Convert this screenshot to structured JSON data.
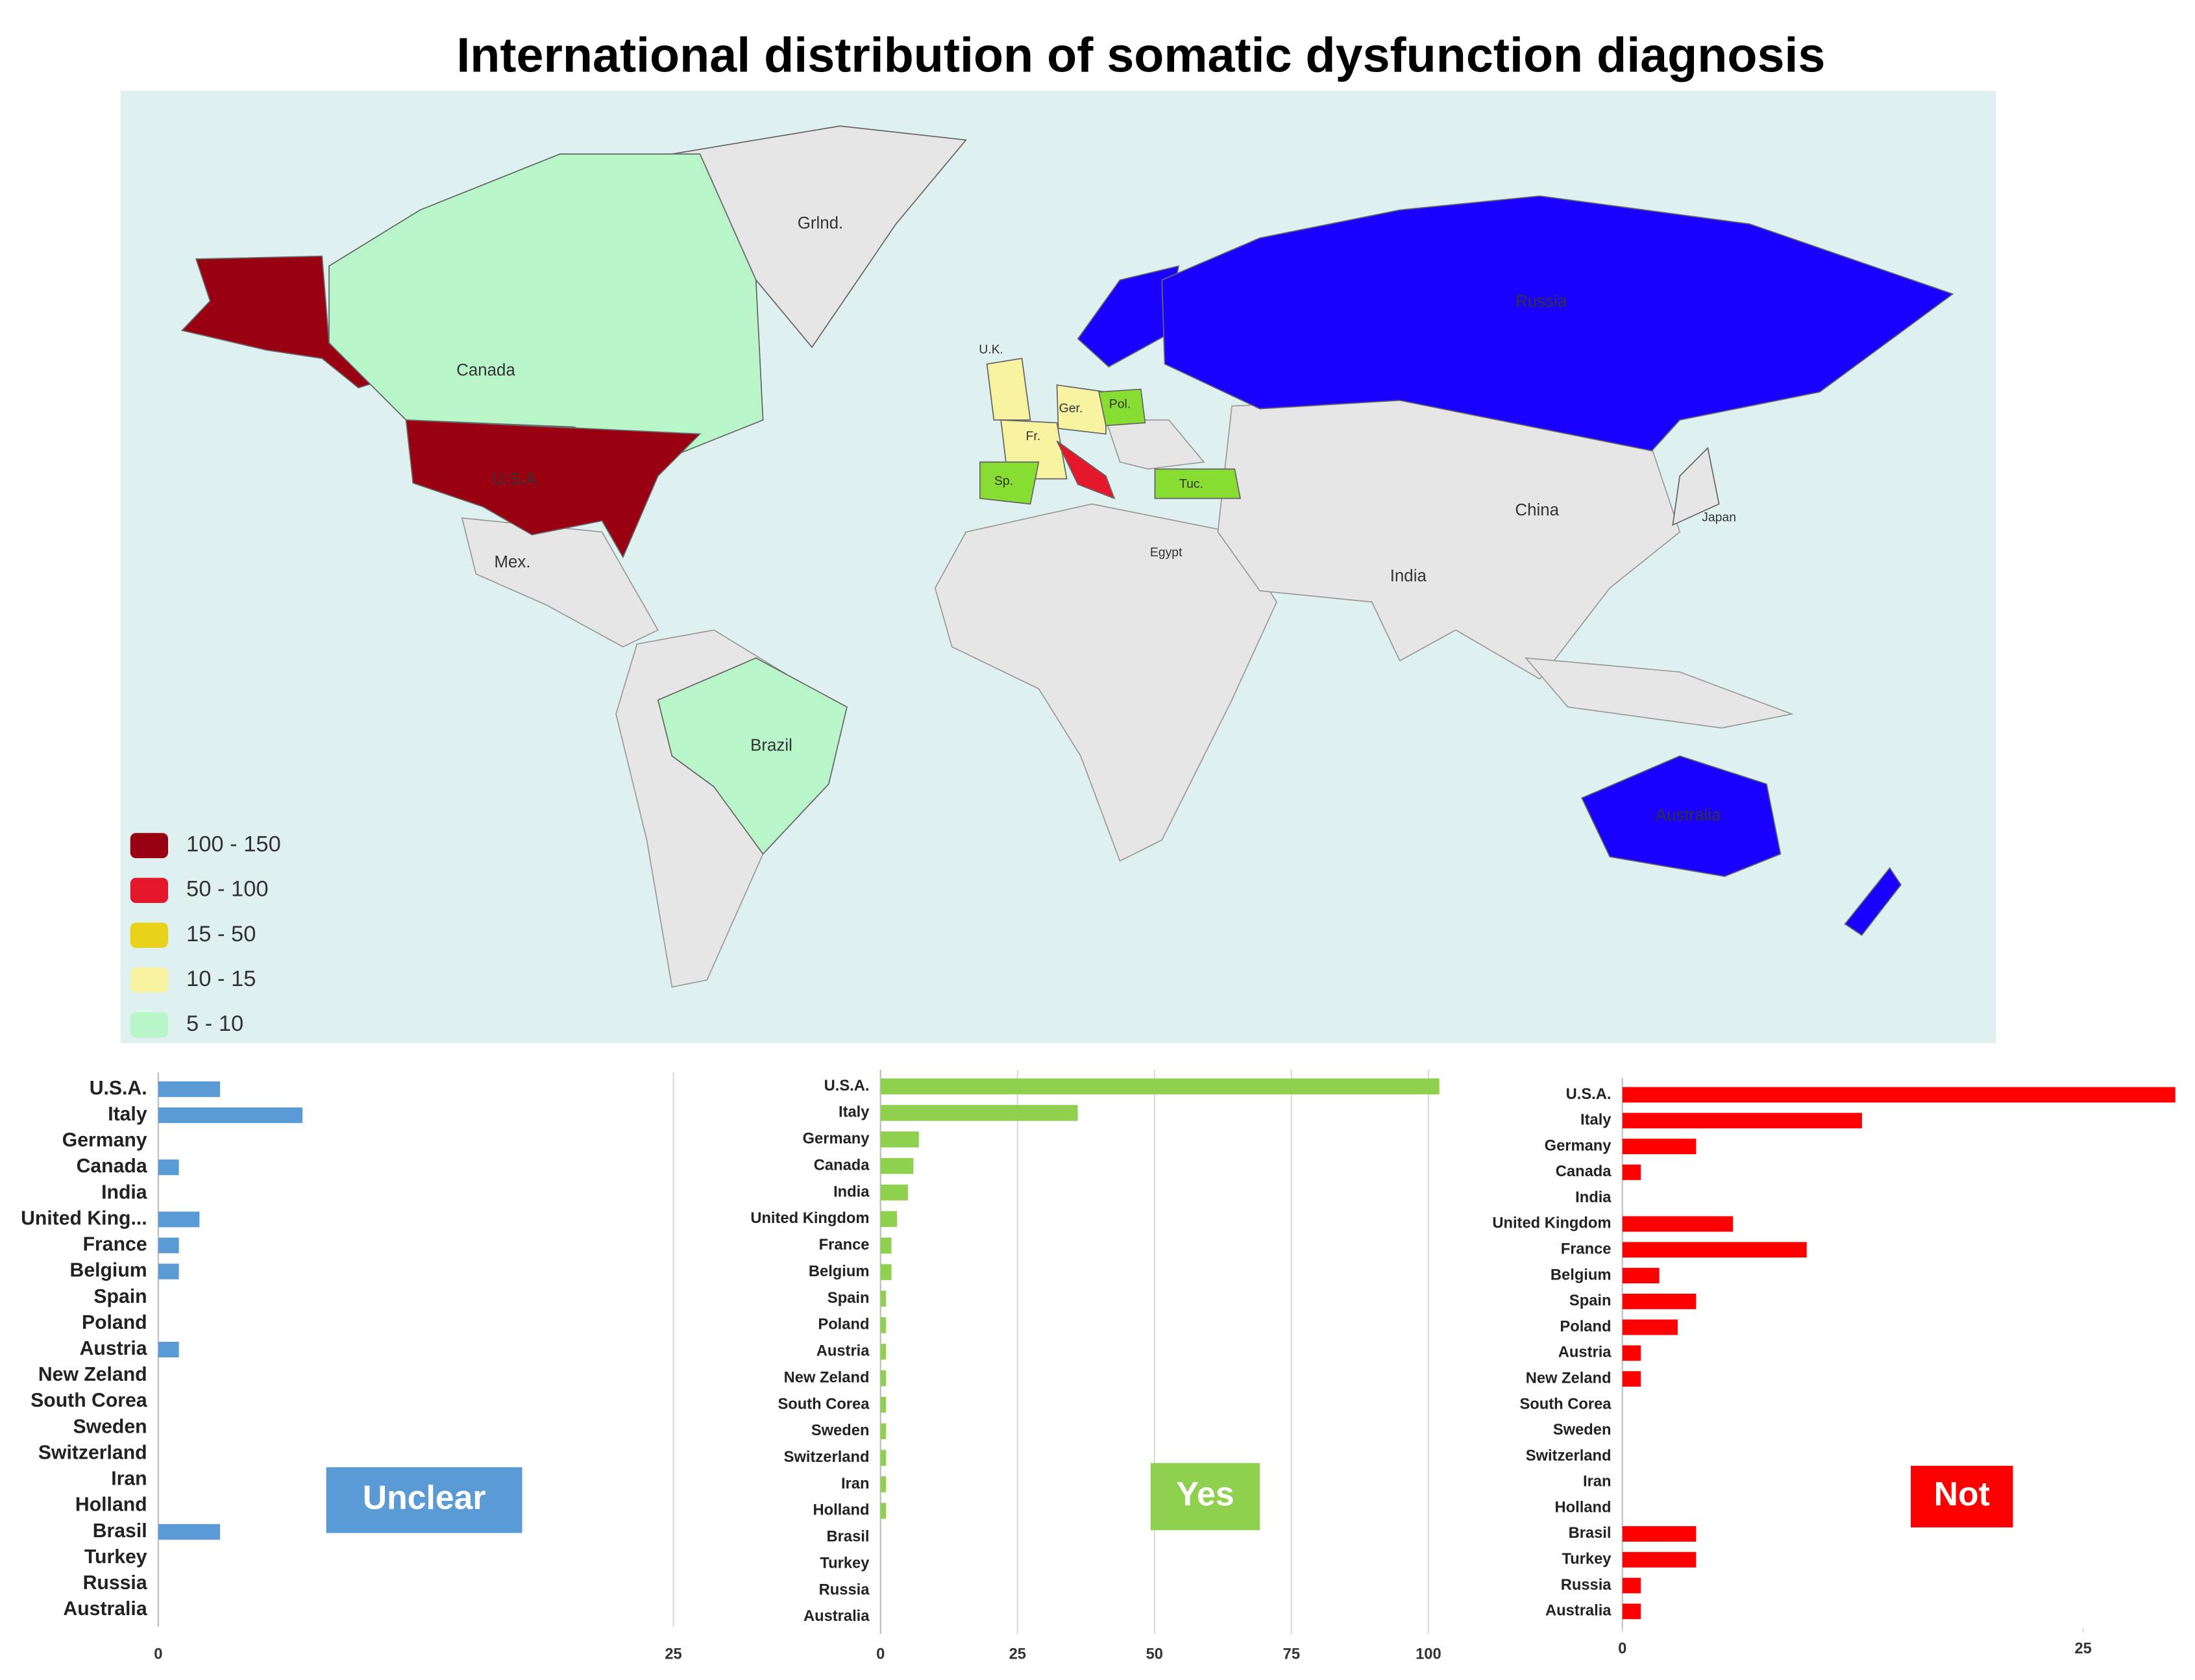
{
  "chart_data": [
    {
      "type": "map",
      "title": "International distribution of somatic dysfunction diagnosis",
      "legend": [
        {
          "label": "100 - 150",
          "color": "#990011"
        },
        {
          "label": "50 - 100",
          "color": "#e5172a"
        },
        {
          "label": "15 - 50",
          "color": "#e8d21a"
        },
        {
          "label": "10 - 15",
          "color": "#f7f3a0"
        },
        {
          "label": "5 - 10",
          "color": "#b8f5c8"
        }
      ],
      "regions": [
        {
          "label": "Grlnd.",
          "color": "#e6e6e6"
        },
        {
          "label": "Canada",
          "color": "#b8f5c8"
        },
        {
          "label": "U.S.A.",
          "color": "#990011"
        },
        {
          "label": "Mex.",
          "color": "#e6e6e6"
        },
        {
          "label": "Brazil",
          "color": "#b8f5c8"
        },
        {
          "label": "Russia",
          "color": "#1a00ff"
        },
        {
          "label": "China",
          "color": "#e6e6e6"
        },
        {
          "label": "India",
          "color": "#e6e6e6"
        },
        {
          "label": "Australia",
          "color": "#1a00ff"
        },
        {
          "label": "Egypt",
          "color": "#e6e6e6"
        },
        {
          "label": "U.K.",
          "color": "#f7f3a0"
        },
        {
          "label": "Fr.",
          "color": "#f7f3a0"
        },
        {
          "label": "Ger.",
          "color": "#f7f3a0"
        },
        {
          "label": "Pol.",
          "color": "#88dd33"
        },
        {
          "label": "Sp.",
          "color": "#88dd33"
        },
        {
          "label": "Tuc.",
          "color": "#88dd33"
        },
        {
          "label": "Japan",
          "color": "#e6e6e6"
        }
      ]
    },
    {
      "type": "bar",
      "label": "Unclear",
      "color": "#5b9bd5",
      "categories": [
        "U.S.A.",
        "Italy",
        "Germany",
        "Canada",
        "India",
        "United King...",
        "France",
        "Belgium",
        "Spain",
        "Poland",
        "Austria",
        "New Zeland",
        "South Corea",
        "Sweden",
        "Switzerland",
        "Iran",
        "Holland",
        "Brasil",
        "Turkey",
        "Russia",
        "Australia"
      ],
      "values": [
        3,
        7,
        0,
        1,
        0,
        2,
        1,
        1,
        0,
        0,
        1,
        0,
        0,
        0,
        0,
        0,
        0,
        3,
        0,
        0,
        0
      ],
      "xlim": [
        0,
        25
      ],
      "xticks": [
        0,
        25
      ],
      "grid": true
    },
    {
      "type": "bar",
      "label": "Yes",
      "color": "#8fd14f",
      "categories": [
        "U.S.A.",
        "Italy",
        "Germany",
        "Canada",
        "India",
        "United Kingdom",
        "France",
        "Belgium",
        "Spain",
        "Poland",
        "Austria",
        "New Zeland",
        "South Corea",
        "Sweden",
        "Switzerland",
        "Iran",
        "Holland",
        "Brasil",
        "Turkey",
        "Russia",
        "Australia"
      ],
      "values": [
        102,
        36,
        7,
        6,
        5,
        3,
        2,
        2,
        1,
        1,
        1,
        1,
        1,
        1,
        1,
        1,
        1,
        0,
        0,
        0,
        0
      ],
      "xlim": [
        0,
        105
      ],
      "xticks": [
        0,
        25,
        50,
        75,
        100
      ],
      "grid": true
    },
    {
      "type": "bar",
      "label": "Not",
      "color": "#ff0000",
      "categories": [
        "U.S.A.",
        "Italy",
        "Germany",
        "Canada",
        "India",
        "United Kingdom",
        "France",
        "Belgium",
        "Spain",
        "Poland",
        "Austria",
        "New Zeland",
        "South Corea",
        "Sweden",
        "Switzerland",
        "Iran",
        "Holland",
        "Brasil",
        "Turkey",
        "Russia",
        "Australia"
      ],
      "values": [
        30,
        13,
        4,
        1,
        0,
        6,
        10,
        2,
        4,
        3,
        1,
        1,
        0,
        0,
        0,
        0,
        0,
        4,
        4,
        1,
        1
      ],
      "xlim": [
        0,
        30
      ],
      "xticks": [
        0,
        25
      ],
      "grid": false
    }
  ]
}
